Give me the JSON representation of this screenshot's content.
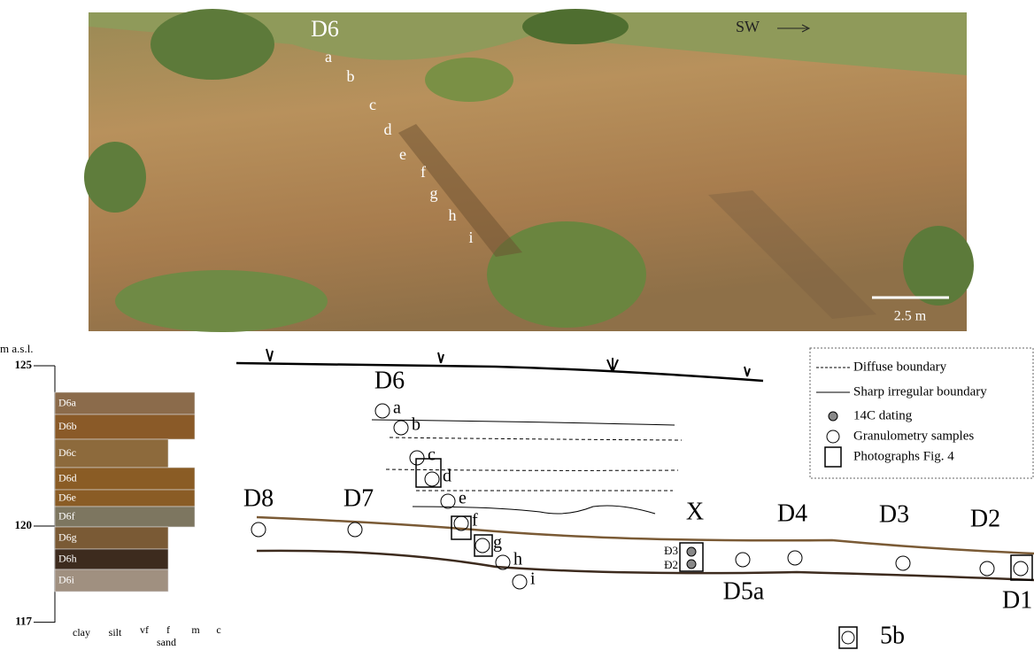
{
  "photo": {
    "site": "D6",
    "samples": [
      "a",
      "b",
      "c",
      "d",
      "e",
      "f",
      "g",
      "h",
      "i"
    ],
    "direction": "SW",
    "scale": "2.5 m"
  },
  "log": {
    "unit": "m a.s.l.",
    "elevations": [
      125,
      120,
      117
    ],
    "layers": [
      "D6a",
      "D6b",
      "D6c",
      "D6d",
      "D6e",
      "D6f",
      "D6g",
      "D6h",
      "D6i"
    ],
    "grain_sizes": [
      "clay",
      "silt",
      "vf",
      "f",
      "m",
      "c"
    ],
    "grain_group": "sand"
  },
  "section": {
    "site": "D6",
    "samples": [
      "a",
      "b",
      "c",
      "d",
      "e",
      "f",
      "g",
      "h",
      "i"
    ],
    "profiles": [
      "D8",
      "D7",
      "X",
      "D4",
      "D3",
      "D2",
      "D5a",
      "D1",
      "5b"
    ],
    "dating_labels": [
      "Ð3",
      "Ð2"
    ]
  },
  "legend": {
    "items": [
      "Diffuse boundary",
      "Sharp irregular boundary",
      "14C dating",
      "Granulometry samples",
      "Photographs Fig. 4"
    ]
  }
}
